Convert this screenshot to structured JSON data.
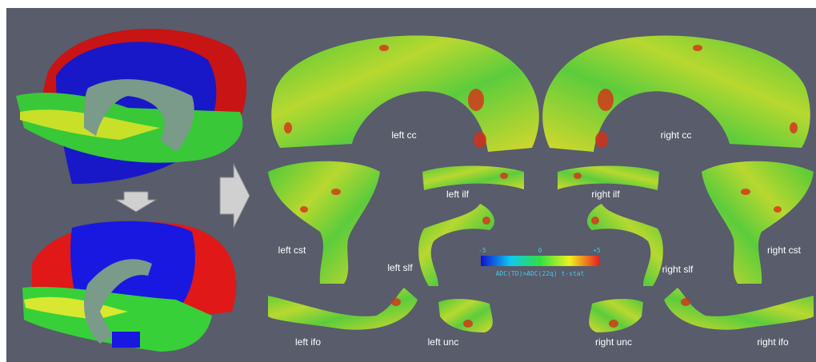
{
  "labels": {
    "left_cc": "left cc",
    "right_cc": "right cc",
    "left_ilf": "left ilf",
    "right_ilf": "right ilf",
    "left_cst": "left cst",
    "right_cst": "right cst",
    "left_slf": "left slf",
    "right_slf": "right slf",
    "left_ifo": "left ifo",
    "left_unc": "left unc",
    "right_unc": "right unc",
    "right_ifo": "right ifo"
  },
  "colorbar": {
    "ticks": [
      "-5",
      "0",
      "+5"
    ],
    "title": "ADC(TD)>ADC(22q) t-stat"
  }
}
